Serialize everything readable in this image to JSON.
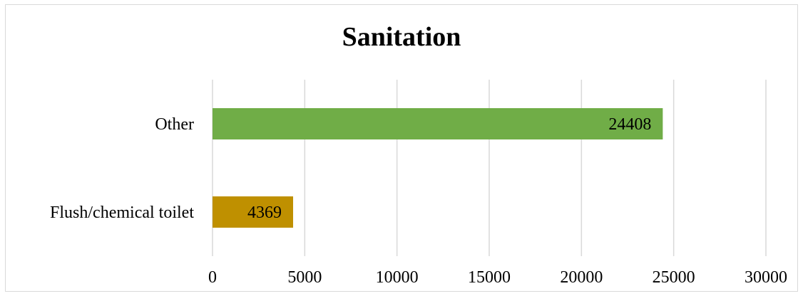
{
  "chart_data": {
    "type": "bar",
    "orientation": "horizontal",
    "title": "Sanitation",
    "categories": [
      "Other",
      "Flush/chemical toilet"
    ],
    "values": [
      24408,
      4369
    ],
    "colors": [
      "#70ad47",
      "#bf9000"
    ],
    "xlim": [
      0,
      30000
    ],
    "xticks": [
      0,
      5000,
      10000,
      15000,
      20000,
      25000,
      30000
    ],
    "grid": true,
    "legend": "none",
    "data_labels": [
      "24408",
      "4369"
    ]
  }
}
